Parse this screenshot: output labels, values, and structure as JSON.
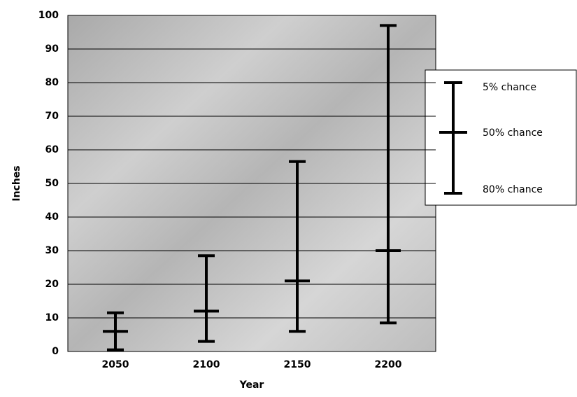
{
  "chart_data": {
    "type": "errorbar",
    "x_label": "Year",
    "y_label": "Inches",
    "categories": [
      "2050",
      "2100",
      "2150",
      "2200"
    ],
    "series": [
      {
        "name": "5% chance",
        "color": "#000000",
        "values": [
          11.5,
          28.5,
          56.5,
          97
        ]
      },
      {
        "name": "50% chance",
        "color": "#000000",
        "values": [
          6,
          12,
          21,
          30
        ]
      },
      {
        "name": "80% chance",
        "color": "#000000",
        "values": [
          0.5,
          3,
          6,
          8.5
        ]
      }
    ],
    "ylim": [
      0,
      100
    ],
    "yticks": [
      0,
      10,
      20,
      30,
      40,
      50,
      60,
      70,
      80,
      90,
      100
    ],
    "grid": true
  }
}
